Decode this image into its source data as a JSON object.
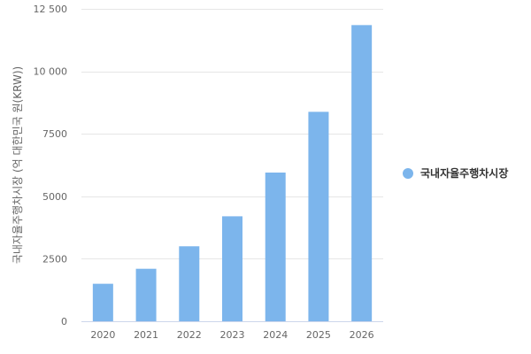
{
  "chart_data": {
    "type": "bar",
    "categories": [
      "2020",
      "2021",
      "2022",
      "2023",
      "2024",
      "2025",
      "2026"
    ],
    "series": [
      {
        "name": "국내자율주행차시장",
        "values": [
          1500,
          2100,
          3000,
          4200,
          5950,
          8380,
          11850
        ],
        "color": "#7cb5ec"
      }
    ],
    "ylabel": "국내자율주행차시장 (억 대한민국 원(KRW))",
    "ylim": [
      0,
      12500
    ],
    "yticks": [
      0,
      2500,
      5000,
      7500,
      10000,
      12500
    ],
    "ytick_labels": [
      "0",
      "2500",
      "5000",
      "7500",
      "10 000",
      "12 500"
    ],
    "grid": true,
    "legend_position": "right"
  }
}
